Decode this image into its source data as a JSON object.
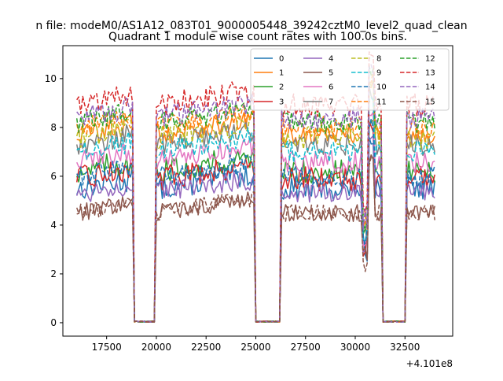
{
  "chart_data": {
    "type": "line",
    "suptitle": "n file: modeM0/AS1A12_083T01_9000005448_39242cztM0_level2_quad_clean",
    "title": "Quadrant 1 module wise count rates with 100.0s bins.",
    "xlabel": "",
    "ylabel": "",
    "offset_label": "+4.101e8",
    "xlim": [
      15300,
      34900
    ],
    "ylim": [
      -0.55,
      11.35
    ],
    "xticks": [
      17500,
      20000,
      22500,
      25000,
      27500,
      30000,
      32500
    ],
    "xtick_labels": [
      "17500",
      "20000",
      "22500",
      "25000",
      "27500",
      "30000",
      "32500"
    ],
    "yticks": [
      0,
      2,
      4,
      6,
      8,
      10
    ],
    "ytick_labels": [
      "0",
      "2",
      "4",
      "6",
      "8",
      "10"
    ],
    "grid": false,
    "legend_position": "upper-right",
    "legend_columns": 4,
    "segments": [
      [
        16000,
        18800
      ],
      [
        20000,
        24900
      ],
      [
        26300,
        31300
      ],
      [
        32600,
        34000
      ]
    ],
    "series": [
      {
        "name": "0",
        "color": "#1f77b4",
        "dash": "solid",
        "base": 5.5,
        "amp": 0.5
      },
      {
        "name": "1",
        "color": "#ff7f0e",
        "dash": "solid",
        "base": 7.7,
        "amp": 0.45
      },
      {
        "name": "2",
        "color": "#2ca02c",
        "dash": "solid",
        "base": 6.2,
        "amp": 0.5
      },
      {
        "name": "3",
        "color": "#d62728",
        "dash": "solid",
        "base": 5.9,
        "amp": 0.5
      },
      {
        "name": "4",
        "color": "#9467bd",
        "dash": "solid",
        "base": 5.3,
        "amp": 0.45
      },
      {
        "name": "5",
        "color": "#8c564b",
        "dash": "solid",
        "base": 4.5,
        "amp": 0.35
      },
      {
        "name": "6",
        "color": "#e377c2",
        "dash": "solid",
        "base": 6.6,
        "amp": 0.45
      },
      {
        "name": "7",
        "color": "#7f7f7f",
        "dash": "solid",
        "base": 7.3,
        "amp": 0.45
      },
      {
        "name": "8",
        "color": "#bcbd22",
        "dash": "dashed",
        "base": 7.6,
        "amp": 0.5
      },
      {
        "name": "9",
        "color": "#17becf",
        "dash": "dashed",
        "base": 7.0,
        "amp": 0.45
      },
      {
        "name": "10",
        "color": "#1f77b4",
        "dash": "dashed",
        "base": 6.0,
        "amp": 0.45
      },
      {
        "name": "11",
        "color": "#ff7f0e",
        "dash": "dashed",
        "base": 8.0,
        "amp": 0.45
      },
      {
        "name": "12",
        "color": "#2ca02c",
        "dash": "dashed",
        "base": 8.2,
        "amp": 0.45
      },
      {
        "name": "13",
        "color": "#d62728",
        "dash": "dashed",
        "base": 8.9,
        "amp": 0.5
      },
      {
        "name": "14",
        "color": "#9467bd",
        "dash": "dashed",
        "base": 8.4,
        "amp": 0.45
      },
      {
        "name": "15",
        "color": "#8c564b",
        "dash": "dashed",
        "base": 4.5,
        "amp": 0.35
      }
    ]
  }
}
